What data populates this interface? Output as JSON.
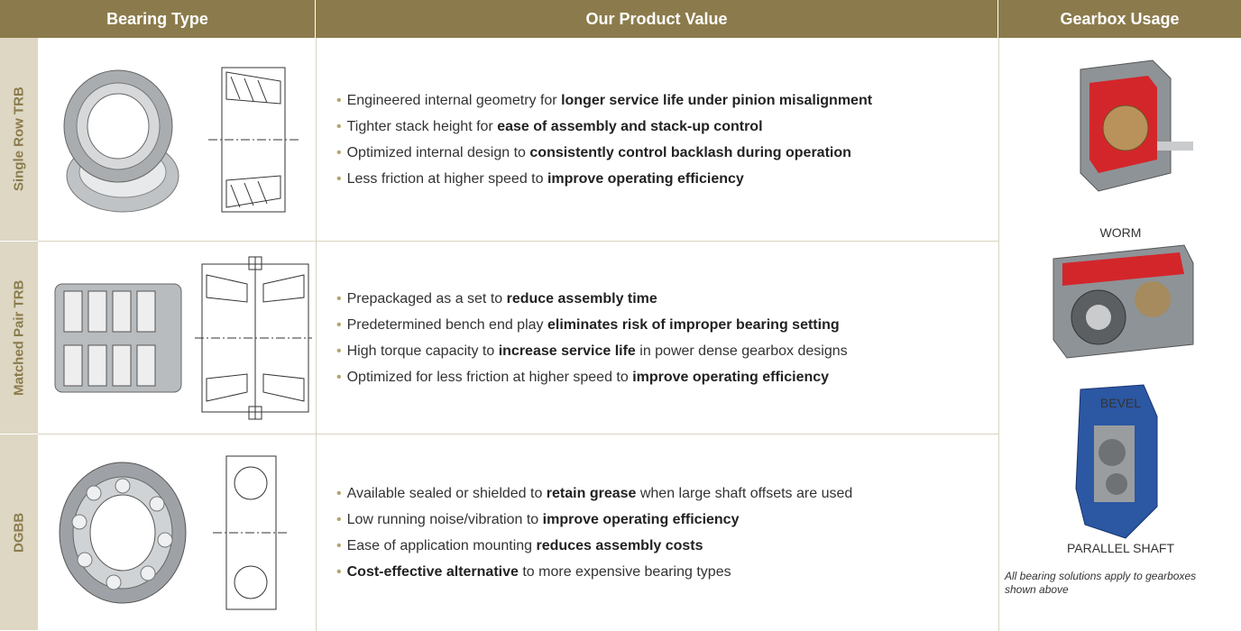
{
  "header": {
    "columns": [
      "Bearing Type",
      "Our Product Value",
      "Gearbox Usage"
    ]
  },
  "rows": [
    {
      "label": "Single Row TRB",
      "bullets": [
        [
          {
            "text": "Engineered internal geometry for ",
            "bold": false
          },
          {
            "text": "longer service life under pinion misalignment",
            "bold": true
          }
        ],
        [
          {
            "text": "Tighter stack height for ",
            "bold": false
          },
          {
            "text": "ease of assembly and stack-up control",
            "bold": true
          }
        ],
        [
          {
            "text": "Optimized internal design to ",
            "bold": false
          },
          {
            "text": "consistently control backlash during operation",
            "bold": true
          }
        ],
        [
          {
            "text": "Less friction at higher speed to ",
            "bold": false
          },
          {
            "text": "improve operating efficiency",
            "bold": true
          }
        ]
      ]
    },
    {
      "label": "Matched Pair TRB",
      "bullets": [
        [
          {
            "text": "Prepackaged as a set to ",
            "bold": false
          },
          {
            "text": "reduce assembly time",
            "bold": true
          }
        ],
        [
          {
            "text": "Predetermined bench end play ",
            "bold": false
          },
          {
            "text": "eliminates risk of improper bearing setting",
            "bold": true
          }
        ],
        [
          {
            "text": "High torque capacity to ",
            "bold": false
          },
          {
            "text": "increase service life",
            "bold": true
          },
          {
            "text": " in power dense gearbox designs",
            "bold": false
          }
        ],
        [
          {
            "text": "Optimized for less friction at higher speed to ",
            "bold": false
          },
          {
            "text": "improve operating efficiency",
            "bold": true
          }
        ]
      ]
    },
    {
      "label": "DGBB",
      "bullets": [
        [
          {
            "text": "Available sealed or shielded to ",
            "bold": false
          },
          {
            "text": "retain grease",
            "bold": true
          },
          {
            "text": " when large shaft offsets are used",
            "bold": false
          }
        ],
        [
          {
            "text": "Low running noise/vibration to ",
            "bold": false
          },
          {
            "text": "improve operating efficiency",
            "bold": true
          }
        ],
        [
          {
            "text": "Ease of application mounting ",
            "bold": false
          },
          {
            "text": "reduces assembly costs",
            "bold": true
          }
        ],
        [
          {
            "text": "Cost-effective alternative",
            "bold": true
          },
          {
            "text": " to more expensive bearing types",
            "bold": false
          }
        ]
      ]
    }
  ],
  "gearbox": {
    "items": [
      "WORM",
      "BEVEL",
      "PARALLEL SHAFT"
    ],
    "note": "All bearing solutions apply to gearboxes shown above"
  }
}
